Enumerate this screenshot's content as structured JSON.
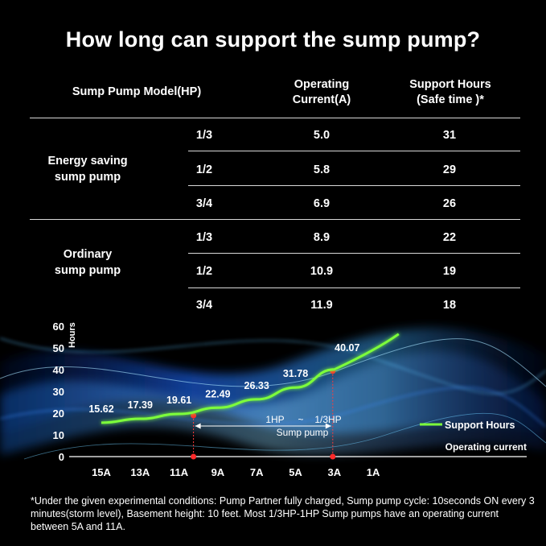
{
  "title": "How long can support the sump pump?",
  "table": {
    "headers": {
      "model": "Sump Pump Model(HP)",
      "current_line1": "Operating",
      "current_line2": "Current(A)",
      "hours_line1": "Support Hours",
      "hours_line2": "(Safe time )*"
    },
    "groups": [
      {
        "label_line1": "Energy saving",
        "label_line2": "sump pump",
        "rows": [
          {
            "hp": "1/3",
            "current": "5.0",
            "hours": "31"
          },
          {
            "hp": "1/2",
            "current": "5.8",
            "hours": "29"
          },
          {
            "hp": "3/4",
            "current": "6.9",
            "hours": "26"
          }
        ]
      },
      {
        "label_line1": "Ordinary",
        "label_line2": "sump pump",
        "rows": [
          {
            "hp": "1/3",
            "current": "8.9",
            "hours": "22"
          },
          {
            "hp": "1/2",
            "current": "10.9",
            "hours": "19"
          },
          {
            "hp": "3/4",
            "current": "11.9",
            "hours": "18"
          }
        ]
      }
    ]
  },
  "chart_data": {
    "type": "line",
    "ylabel": "Hours",
    "xlabel": "Operating current",
    "ylim": [
      0,
      60
    ],
    "yticks": [
      0,
      10,
      20,
      30,
      40,
      50,
      60
    ],
    "categories": [
      "15A",
      "13A",
      "11A",
      "9A",
      "7A",
      "5A",
      "3A",
      "1A"
    ],
    "series": [
      {
        "name": "Support Hours",
        "x": [
          "15A",
          "13A",
          "11A",
          "9A",
          "7A",
          "5A",
          "3A"
        ],
        "values": [
          15.62,
          17.39,
          19.61,
          22.49,
          26.33,
          31.78,
          40.07
        ],
        "labels": [
          "15.62",
          "17.39",
          "19.61",
          "22.49",
          "26.33",
          "31.78",
          "40.07"
        ],
        "color": "#7dff3a"
      }
    ],
    "range_annotation": {
      "line1_left": "1HP",
      "line1_mid": "~",
      "line1_right": "1/3HP",
      "line2": "Sump pump",
      "from": "11A",
      "to": "3A"
    },
    "legend_position": "right"
  },
  "footnote": "*Under the given experimental conditions: Pump Partner fully charged, Sump pump cycle: 10seconds ON every 3 minutes(storm level), Basement height: 10 feet. Most 1/3HP-1HP Sump pumps have an operating current between 5A and 11A."
}
